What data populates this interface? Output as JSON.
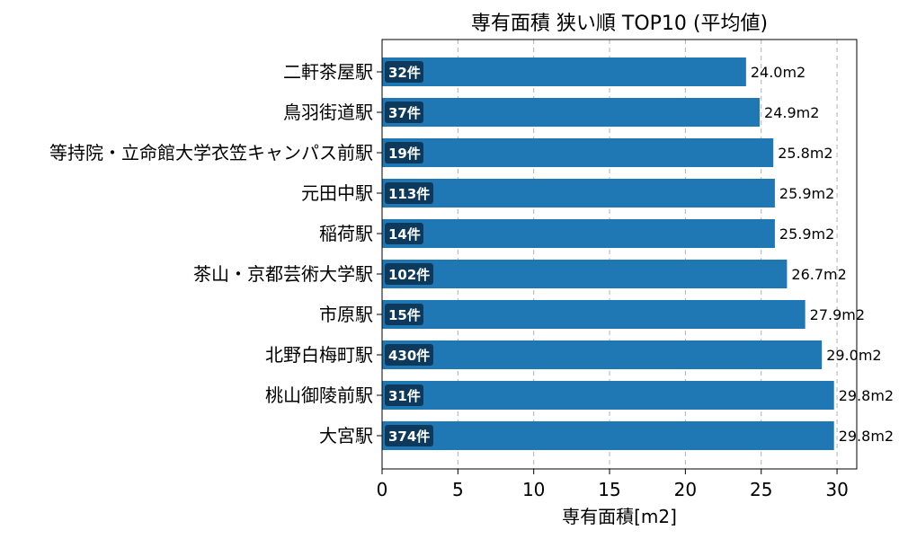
{
  "chart_data": {
    "type": "bar",
    "orientation": "horizontal",
    "title": "専有面積 狭い順 TOP10 (平均値)",
    "xlabel": "専有面積[m2]",
    "ylabel": "",
    "xlim": [
      0,
      31.3
    ],
    "xticks": [
      0,
      5,
      10,
      15,
      20,
      25,
      30
    ],
    "grid": "x dashed",
    "bar_color": "#1f77b4",
    "badge_color": "#0d3a5c",
    "categories": [
      "二軒茶屋駅",
      "鳥羽街道駅",
      "等持院・立命館大学衣笠キャンパス前駅",
      "元田中駅",
      "稲荷駅",
      "茶山・京都芸術大学駅",
      "市原駅",
      "北野白梅町駅",
      "桃山御陵前駅",
      "大宮駅"
    ],
    "values": [
      24.0,
      24.9,
      25.8,
      25.9,
      25.9,
      26.7,
      27.9,
      29.0,
      29.8,
      29.8
    ],
    "value_labels": [
      "24.0m2",
      "24.9m2",
      "25.8m2",
      "25.9m2",
      "25.9m2",
      "26.7m2",
      "27.9m2",
      "29.0m2",
      "29.8m2",
      "29.8m2"
    ],
    "counts": [
      "32件",
      "37件",
      "19件",
      "113件",
      "14件",
      "102件",
      "15件",
      "430件",
      "31件",
      "374件"
    ]
  }
}
